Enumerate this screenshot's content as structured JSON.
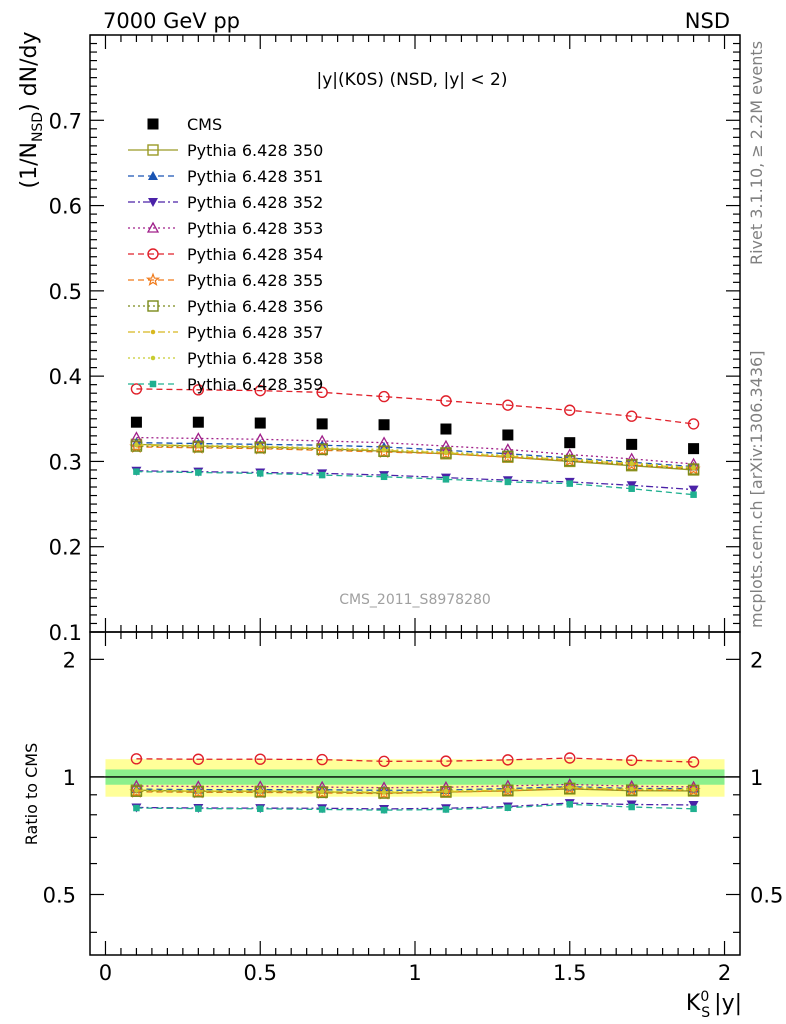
{
  "header": {
    "left": "7000 GeV pp",
    "right": "NSD"
  },
  "side_text": {
    "rivet": "Rivet 3.1.10, ≥ 2.2M events",
    "mcplots": "mcplots.cern.ch [arXiv:1306.3436]"
  },
  "watermark": "CMS_2011_S8978280",
  "chart_data": [
    {
      "type": "scatter",
      "panel": "main",
      "title": "|y|(K0S) (NSD, |y| < 2)",
      "ylabel": "(1/N_NSD) dN/dy",
      "ylim": [
        0.1,
        0.8
      ],
      "xlim": [
        -0.05,
        2.05
      ],
      "yticks": [
        0.1,
        0.2,
        0.3,
        0.4,
        0.5,
        0.6,
        0.7
      ],
      "ytick_labels": [
        "0.1",
        "0.2",
        "0.3",
        "0.4",
        "0.5",
        "0.6",
        "0.7"
      ],
      "x": [
        0.1,
        0.3,
        0.5,
        0.7,
        0.9,
        1.1,
        1.3,
        1.5,
        1.7,
        1.9
      ],
      "series": [
        {
          "name": "CMS",
          "color": "#000000",
          "marker": "square-filled",
          "line": "none",
          "values": [
            0.346,
            0.346,
            0.345,
            0.344,
            0.343,
            0.338,
            0.331,
            0.322,
            0.32,
            0.315
          ]
        },
        {
          "name": "Pythia 6.428 350",
          "color": "#9a9a26",
          "marker": "square-open",
          "line": "solid",
          "values": [
            0.32,
            0.318,
            0.317,
            0.315,
            0.312,
            0.309,
            0.305,
            0.3,
            0.295,
            0.29
          ]
        },
        {
          "name": "Pythia 6.428 351",
          "color": "#1a55b3",
          "marker": "triangle-up-filled",
          "line": "dashed",
          "values": [
            0.322,
            0.321,
            0.32,
            0.319,
            0.317,
            0.313,
            0.309,
            0.304,
            0.299,
            0.294
          ]
        },
        {
          "name": "Pythia 6.428 352",
          "color": "#4b22a8",
          "marker": "triangle-down-filled",
          "line": "dashdot",
          "values": [
            0.289,
            0.288,
            0.287,
            0.286,
            0.284,
            0.281,
            0.278,
            0.276,
            0.272,
            0.267
          ]
        },
        {
          "name": "Pythia 6.428 353",
          "color": "#a0208a",
          "marker": "triangle-up-open",
          "line": "dotted",
          "values": [
            0.328,
            0.327,
            0.326,
            0.324,
            0.322,
            0.318,
            0.314,
            0.308,
            0.303,
            0.297
          ]
        },
        {
          "name": "Pythia 6.428 354",
          "color": "#e0202a",
          "marker": "circle-open",
          "line": "dashed",
          "values": [
            0.385,
            0.384,
            0.383,
            0.381,
            0.376,
            0.371,
            0.366,
            0.36,
            0.353,
            0.344
          ]
        },
        {
          "name": "Pythia 6.428 355",
          "color": "#f07a1a",
          "marker": "star-open",
          "line": "dashed",
          "values": [
            0.317,
            0.316,
            0.315,
            0.313,
            0.311,
            0.309,
            0.305,
            0.301,
            0.296,
            0.291
          ]
        },
        {
          "name": "Pythia 6.428 356",
          "color": "#7a8a1a",
          "marker": "square-open",
          "line": "dotted",
          "values": [
            0.318,
            0.317,
            0.316,
            0.314,
            0.312,
            0.31,
            0.306,
            0.301,
            0.296,
            0.291
          ]
        },
        {
          "name": "Pythia 6.428 357",
          "color": "#d8b820",
          "marker": "dot",
          "line": "dashdot",
          "values": [
            0.319,
            0.318,
            0.317,
            0.315,
            0.313,
            0.31,
            0.306,
            0.302,
            0.297,
            0.292
          ]
        },
        {
          "name": "Pythia 6.428 358",
          "color": "#c8cc30",
          "marker": "dot",
          "line": "dotted",
          "values": [
            0.32,
            0.319,
            0.318,
            0.316,
            0.314,
            0.311,
            0.307,
            0.303,
            0.298,
            0.293
          ]
        },
        {
          "name": "Pythia 6.428 359",
          "color": "#20b090",
          "marker": "square-small",
          "line": "dashed",
          "values": [
            0.288,
            0.287,
            0.286,
            0.284,
            0.282,
            0.279,
            0.276,
            0.274,
            0.268,
            0.261
          ]
        }
      ]
    },
    {
      "type": "scatter",
      "panel": "ratio",
      "ylabel": "Ratio to CMS",
      "xlabel": "K_S^0 |y|",
      "ylim": [
        0.35,
        2.35
      ],
      "xlim": [
        -0.05,
        2.05
      ],
      "xticks": [
        0,
        0.5,
        1,
        1.5,
        2
      ],
      "xtick_labels": [
        "0",
        "0.5",
        "1",
        "1.5",
        "2"
      ],
      "yticks": [
        0.5,
        1,
        2
      ],
      "ytick_labels": [
        "0.5",
        "1",
        "2"
      ],
      "bands": [
        {
          "color": "#ffff99",
          "lower": 0.89,
          "upper": 1.11
        },
        {
          "color": "#8cf08c",
          "lower": 0.955,
          "upper": 1.045
        }
      ]
    }
  ]
}
